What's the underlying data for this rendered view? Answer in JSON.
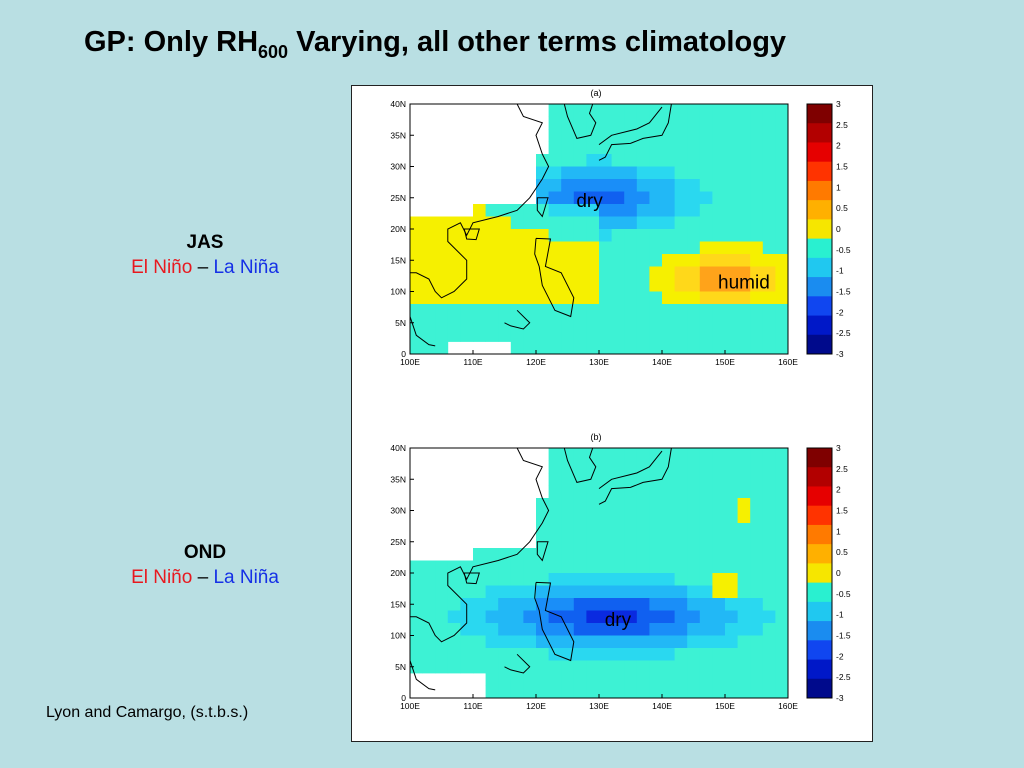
{
  "slide": {
    "title_main": "GP: Only RH",
    "title_sub": "600",
    "title_rest": " Varying, all other terms climatology",
    "credit": "Lyon and Camargo, (s.t.b.s.)"
  },
  "panels": [
    {
      "season": "JAS",
      "el_nino": "El Niño",
      "dash": " – ",
      "la_nina": "La Niña",
      "label": "(a)",
      "annotations": [
        "dry",
        "humid"
      ]
    },
    {
      "season": "OND",
      "el_nino": "El Niño",
      "dash": " – ",
      "la_nina": "La Niña",
      "label": "(b)",
      "annotations": [
        "dry"
      ]
    }
  ],
  "colors": {
    "background": "#b9dfe3",
    "el_nino": "#e8191f",
    "la_nina": "#1530e6"
  },
  "map": {
    "lon_ticks": [
      "100E",
      "110E",
      "120E",
      "130E",
      "140E",
      "150E",
      "160E"
    ],
    "lat_ticks": [
      "40N",
      "35N",
      "30N",
      "25N",
      "20N",
      "15N",
      "10N",
      "5N",
      "0"
    ],
    "colorbar_ticks": [
      "3",
      "2.5",
      "2",
      "1.5",
      "1",
      "0.5",
      "0",
      "-0.5",
      "-1",
      "-1.5",
      "-2",
      "-2.5",
      "-3"
    ],
    "colorbar_colors": [
      "#7f0000",
      "#b20000",
      "#e60000",
      "#ff3300",
      "#ff7a00",
      "#ffb000",
      "#f6e600",
      "#29f0d0",
      "#20c8f0",
      "#1a8cf0",
      "#1046f0",
      "#0018c8",
      "#000a8c"
    ]
  }
}
